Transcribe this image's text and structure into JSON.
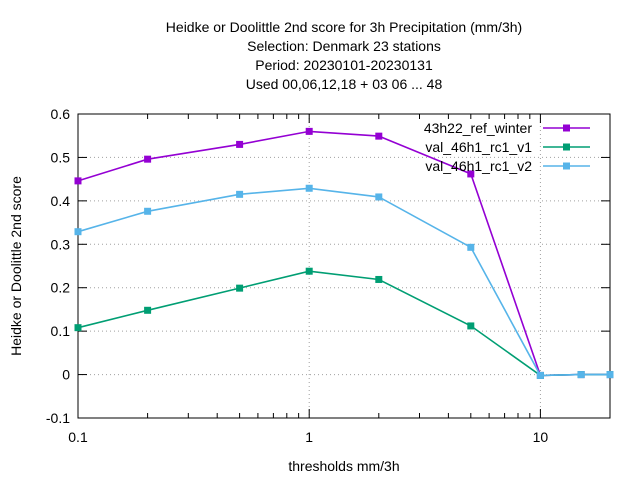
{
  "chart_data": {
    "type": "line",
    "title_lines": [
      "Heidke or Doolittle 2nd score  for 3h Precipitation (mm/3h)",
      "Selection: Denmark     23 stations",
      "Period: 20230101-20230131",
      "Used  00,06,12,18  + 03 06 ... 48"
    ],
    "xlabel": "thresholds mm/3h",
    "ylabel": "Heidke or Doolittle 2nd score",
    "x_scale": "log",
    "xlim": [
      0.1,
      20
    ],
    "ylim": [
      -0.1,
      0.6
    ],
    "x_ticks": [
      {
        "value": 0.1,
        "label": "0.1"
      },
      {
        "value": 1,
        "label": "1"
      },
      {
        "value": 10,
        "label": "10"
      }
    ],
    "y_ticks": [
      {
        "value": -0.1,
        "label": "-0.1"
      },
      {
        "value": 0,
        "label": "0"
      },
      {
        "value": 0.1,
        "label": "0.1"
      },
      {
        "value": 0.2,
        "label": "0.2"
      },
      {
        "value": 0.3,
        "label": "0.3"
      },
      {
        "value": 0.4,
        "label": "0.4"
      },
      {
        "value": 0.5,
        "label": "0.5"
      },
      {
        "value": 0.6,
        "label": "0.6"
      }
    ],
    "grid": true,
    "legend_position": "top-right",
    "x": [
      0.1,
      0.2,
      0.5,
      1,
      2,
      5,
      10,
      15,
      20
    ],
    "series": [
      {
        "name": "43h22_ref_winter",
        "color": "#9400d3",
        "values": [
          0.446,
          0.496,
          0.53,
          0.56,
          0.549,
          0.462,
          -0.002,
          0.0,
          0.0
        ]
      },
      {
        "name": "val_46h1_rc1_v1",
        "color": "#009e73",
        "values": [
          0.108,
          0.148,
          0.199,
          0.238,
          0.219,
          0.112,
          -0.002,
          0.0,
          0.0
        ]
      },
      {
        "name": "val_46h1_rc1_v2",
        "color": "#56b4e9",
        "values": [
          0.329,
          0.376,
          0.415,
          0.429,
          0.409,
          0.293,
          -0.002,
          0.0,
          0.0
        ]
      }
    ]
  }
}
